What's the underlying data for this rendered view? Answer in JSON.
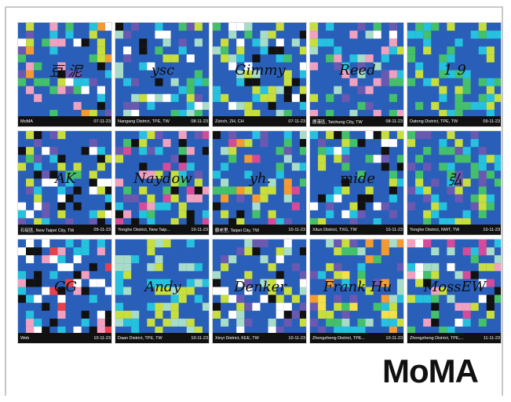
{
  "logo": "MoMA",
  "palette": {
    "blue": "#2a5fb9",
    "cyan": "#25c1df",
    "lime": "#c8de3c",
    "green": "#44c06a",
    "mint": "#a7dcc9",
    "purple": "#6a59b1",
    "black": "#111111",
    "white": "#ffffff",
    "pink": "#f1a1c0",
    "magenta": "#d64a9a",
    "orange": "#f39a32",
    "red": "#e6414c",
    "yellow": "#f5e04a"
  },
  "cards": [
    {
      "signature": "豆 泥",
      "location": "MoMA",
      "date": "07-11-23"
    },
    {
      "signature": "ysc",
      "location": "Nangang District, TPE, TW",
      "date": "08-11-23"
    },
    {
      "signature": "Gimmy",
      "location": "Zürich, ZH, CH",
      "date": "07-11-23"
    },
    {
      "signature": "Reed",
      "location": "鹿港區, Taichung City, TW",
      "date": "08-11-23"
    },
    {
      "signature": "1 9",
      "location": "Datong District, TPE, TW",
      "date": "09-11-23"
    },
    {
      "signature": "AK",
      "location": "石碇區, New Taipei City, TW",
      "date": "09-11-23"
    },
    {
      "signature": "Naydow",
      "location": "Yonghe District, New Taip...",
      "date": "10-11-23"
    },
    {
      "signature": "yh.",
      "location": "鶴老里, Taipei City, TW",
      "date": "10-11-23"
    },
    {
      "signature": "mide",
      "location": "Xitun District, TXG, TW",
      "date": "10-11-23"
    },
    {
      "signature": "弘",
      "location": "Yonghe District, NWT, TW",
      "date": "10-11-23"
    },
    {
      "signature": "GG",
      "location": "Web",
      "date": "10-11-23"
    },
    {
      "signature": "Andy",
      "location": "Daan District, TPE, TW",
      "date": "10-11-23"
    },
    {
      "signature": "Denker",
      "location": "Xinyi District, KEE, TW",
      "date": "10-11-23"
    },
    {
      "signature": "Frank Hu",
      "location": "Zhongzheng District, TPE...",
      "date": "10-11-23"
    },
    {
      "signature": "MossEW",
      "location": "Zhongzheng District, TPE,...",
      "date": "11-11-23"
    }
  ]
}
